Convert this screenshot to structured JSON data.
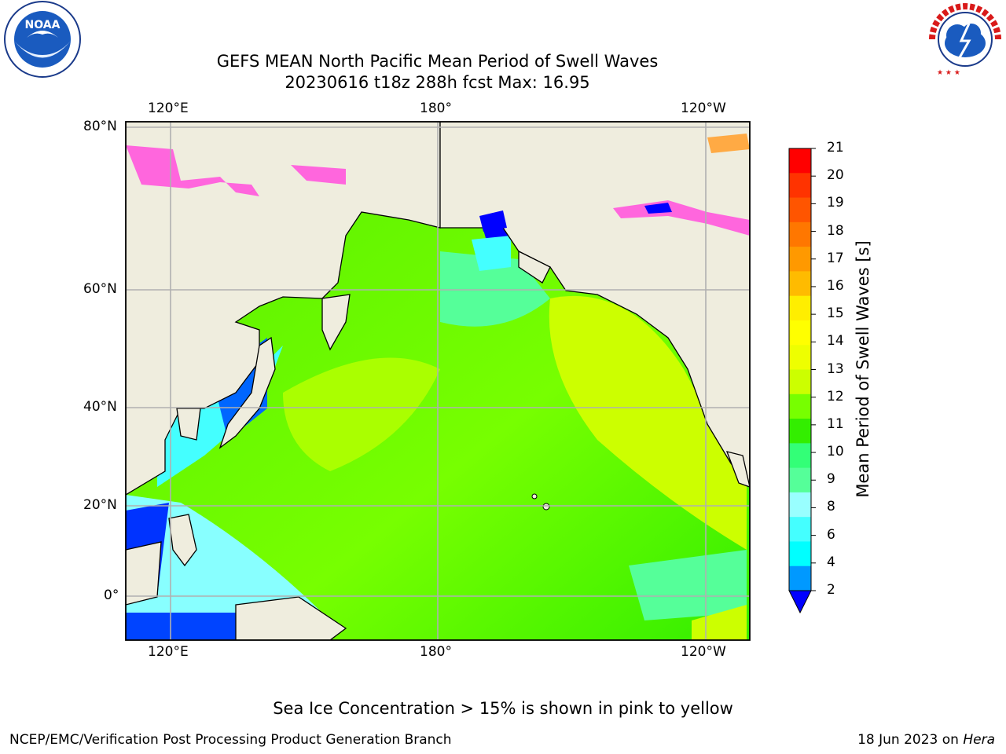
{
  "header": {
    "title_line1": "GEFS MEAN North Pacific Mean Period of Swell Waves",
    "title_line2": "20230616 t18z 288h fcst   Max: 16.95"
  },
  "logos": {
    "left": "NOAA",
    "right": "NATIONAL WEATHER SERVICE"
  },
  "map": {
    "lon_labels_top": [
      "120°E",
      "180°",
      "120°W"
    ],
    "lon_labels_bottom": [
      "120°E",
      "180°",
      "120°W"
    ],
    "lat_labels": [
      "80°N",
      "60°N",
      "40°N",
      "20°N",
      "0°"
    ],
    "colors": {
      "land": "#efedde",
      "coast": "#000000",
      "grid": "#b0b0b0",
      "sea_ice": "#ff66dd"
    }
  },
  "colorbar": {
    "label": "Mean Period of Swell Waves [s]",
    "ticks": [
      "21",
      "20",
      "19",
      "18",
      "17",
      "16",
      "15",
      "14",
      "13",
      "12",
      "11",
      "10",
      "9",
      "8",
      "6",
      "4",
      "2"
    ],
    "colors": [
      "#ff0000",
      "#ff3300",
      "#ff5500",
      "#ff7700",
      "#ff9900",
      "#ffbb00",
      "#ffee00",
      "#ffff00",
      "#eeff00",
      "#ccff00",
      "#77ff00",
      "#33ee00",
      "#33ff77",
      "#55ff99",
      "#99ffff",
      "#44ffff",
      "#00ffff",
      "#0099ff",
      "#0000ff"
    ]
  },
  "notes": {
    "ice": "Sea Ice Concentration > 15% is shown in pink to yellow",
    "footer_left": "NCEP/EMC/Verification Post Processing Product Generation Branch",
    "footer_right_date": "18 Jun 2023 on ",
    "footer_right_host": "Hera"
  }
}
